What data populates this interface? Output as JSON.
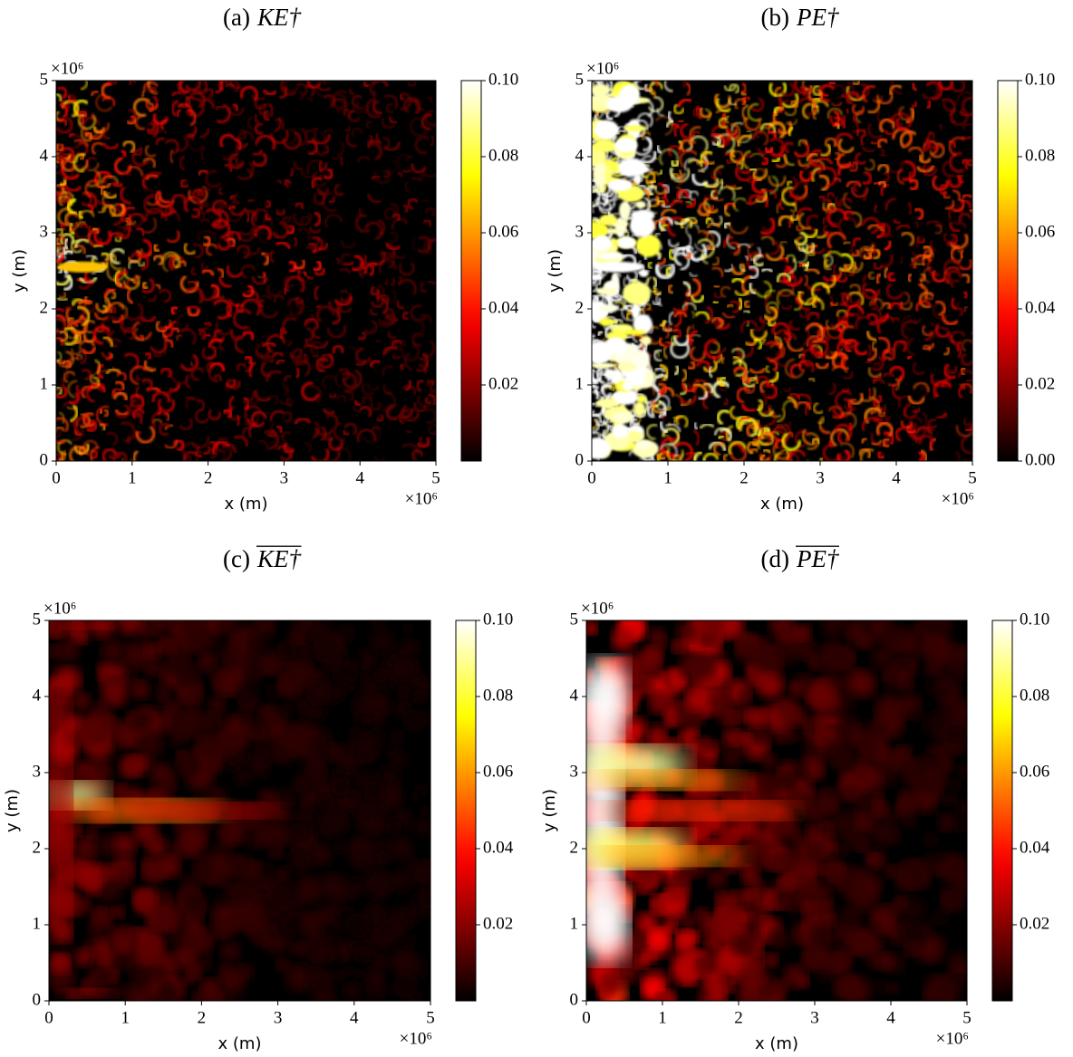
{
  "chart_data": [
    {
      "type": "heatmap",
      "label": "(a)",
      "symbol": "KE†",
      "overline": false,
      "xlabel": "x (m)",
      "ylabel": "y (m)",
      "x_offset": "×10⁶",
      "y_offset": "×10⁶",
      "xlim": [
        0,
        5
      ],
      "ylim": [
        0,
        5
      ],
      "xticks": [
        0,
        1,
        2,
        3,
        4,
        5
      ],
      "yticks": [
        0,
        1,
        2,
        3,
        4,
        5
      ],
      "colormap": "hot",
      "clim": [
        0,
        0.1
      ],
      "cticks": [
        0.02,
        0.04,
        0.06,
        0.08,
        {
          "value": 0.1,
          "label": "0.10"
        }
      ]
    },
    {
      "type": "heatmap",
      "label": "(b)",
      "symbol": "PE†",
      "overline": false,
      "xlabel": "x (m)",
      "ylabel": "y (m)",
      "x_offset": "×10⁶",
      "y_offset": "×10⁶",
      "xlim": [
        0,
        5
      ],
      "ylim": [
        0,
        5
      ],
      "xticks": [
        0,
        1,
        2,
        3,
        4,
        5
      ],
      "yticks": [
        0,
        1,
        2,
        3,
        4,
        5
      ],
      "colormap": "hot",
      "clim": [
        0,
        0.1
      ],
      "cticks": [
        {
          "value": 0,
          "label": "0.00"
        },
        0.02,
        0.04,
        0.06,
        0.08,
        {
          "value": 0.1,
          "label": "0.10"
        }
      ]
    },
    {
      "type": "heatmap",
      "label": "(c)",
      "symbol": "KE†",
      "overline": true,
      "xlabel": "x (m)",
      "ylabel": "y (m)",
      "x_offset": "×10⁶",
      "y_offset": "×10⁶",
      "xlim": [
        0,
        5
      ],
      "ylim": [
        0,
        5
      ],
      "xticks": [
        0,
        1,
        2,
        3,
        4,
        5
      ],
      "yticks": [
        0,
        1,
        2,
        3,
        4,
        5
      ],
      "colormap": "hot",
      "clim": [
        0,
        0.1
      ],
      "cticks": [
        0.02,
        0.04,
        0.06,
        0.08,
        {
          "value": 0.1,
          "label": "0.10"
        }
      ]
    },
    {
      "type": "heatmap",
      "label": "(d)",
      "symbol": "PE†",
      "overline": true,
      "xlabel": "x (m)",
      "ylabel": "y (m)",
      "x_offset": "×10⁶",
      "y_offset": "×10⁶",
      "xlim": [
        0,
        5
      ],
      "ylim": [
        0,
        5
      ],
      "xticks": [
        0,
        1,
        2,
        3,
        4,
        5
      ],
      "yticks": [
        0,
        1,
        2,
        3,
        4,
        5
      ],
      "colormap": "hot",
      "clim": [
        0,
        0.1
      ],
      "cticks": [
        0.02,
        0.04,
        0.06,
        0.08,
        {
          "value": 0.1,
          "label": "0.10"
        }
      ]
    }
  ]
}
